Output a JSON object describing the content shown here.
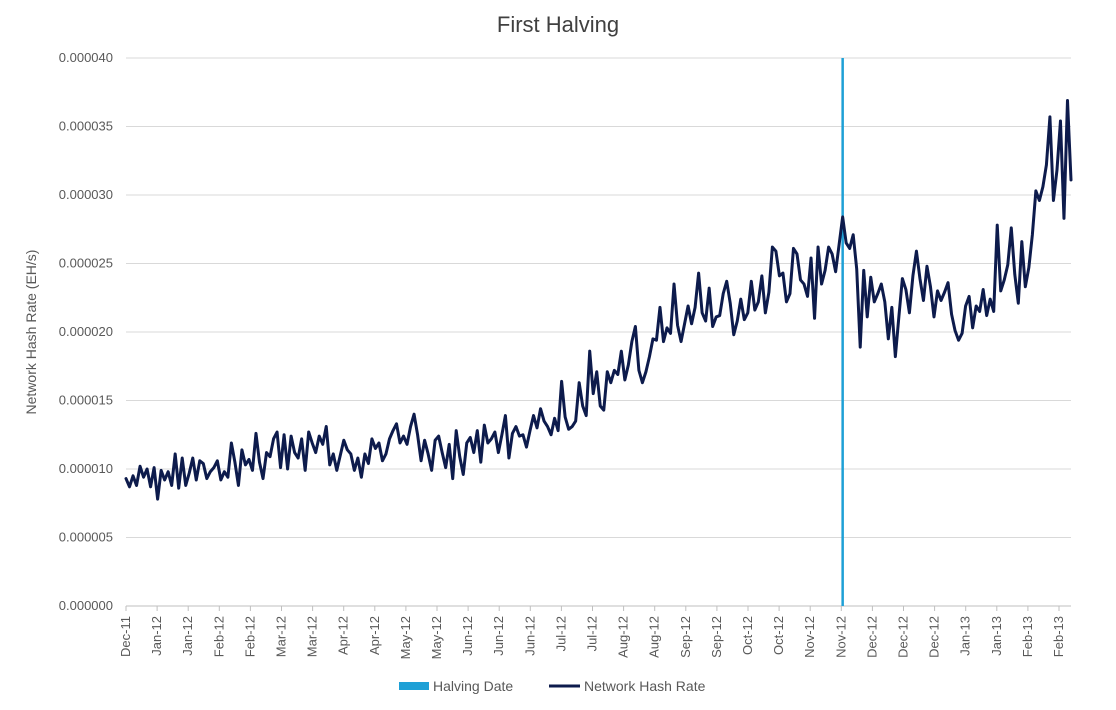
{
  "chart_data": {
    "type": "line",
    "title": "First Halving",
    "ylabel": "Network Hash Rate (EH/s)",
    "xlabel": "",
    "ylim": [
      0,
      4e-05
    ],
    "yticks": [
      "0.000000",
      "0.000005",
      "0.000010",
      "0.000015",
      "0.000020",
      "0.000025",
      "0.000030",
      "0.000035",
      "0.000040"
    ],
    "ytick_values": [
      0,
      5e-06,
      1e-05,
      1.5e-05,
      2e-05,
      2.5e-05,
      3e-05,
      3.5e-05,
      4e-05
    ],
    "x_tick_labels": [
      "Dec-11",
      "Jan-12",
      "Jan-12",
      "Feb-12",
      "Feb-12",
      "Mar-12",
      "Mar-12",
      "Apr-12",
      "Apr-12",
      "May-12",
      "May-12",
      "Jun-12",
      "Jun-12",
      "Jun-12",
      "Jul-12",
      "Jul-12",
      "Aug-12",
      "Aug-12",
      "Sep-12",
      "Sep-12",
      "Oct-12",
      "Oct-12",
      "Nov-12",
      "Nov-12",
      "Dec-12",
      "Dec-12",
      "Dec-12",
      "Jan-13",
      "Jan-13",
      "Feb-13",
      "Feb-13"
    ],
    "grid": true,
    "legend_position": "bottom",
    "series": [
      {
        "name": "Network Hash Rate",
        "color": "#0d1b4c",
        "values": [
          9.3e-06,
          8.7e-06,
          9.5e-06,
          8.8e-06,
          1.02e-05,
          9.4e-06,
          1e-05,
          8.7e-06,
          1.01e-05,
          7.8e-06,
          9.9e-06,
          9.2e-06,
          9.8e-06,
          8.8e-06,
          1.11e-05,
          8.6e-06,
          1.08e-05,
          8.8e-06,
          9.7e-06,
          1.08e-05,
          9.2e-06,
          1.06e-05,
          1.04e-05,
          9.3e-06,
          9.8e-06,
          1.01e-05,
          1.06e-05,
          9.2e-06,
          9.8e-06,
          9.4e-06,
          1.19e-05,
          1.05e-05,
          8.8e-06,
          1.14e-05,
          1.03e-05,
          1.07e-05,
          9.9e-06,
          1.26e-05,
          1.05e-05,
          9.3e-06,
          1.12e-05,
          1.09e-05,
          1.22e-05,
          1.27e-05,
          1.01e-05,
          1.25e-05,
          1e-05,
          1.24e-05,
          1.12e-05,
          1.08e-05,
          1.22e-05,
          9.9e-06,
          1.27e-05,
          1.19e-05,
          1.12e-05,
          1.24e-05,
          1.18e-05,
          1.31e-05,
          1.03e-05,
          1.11e-05,
          9.9e-06,
          1.1e-05,
          1.21e-05,
          1.14e-05,
          1.11e-05,
          9.9e-06,
          1.08e-05,
          9.4e-06,
          1.11e-05,
          1.04e-05,
          1.22e-05,
          1.15e-05,
          1.19e-05,
          1.06e-05,
          1.11e-05,
          1.22e-05,
          1.28e-05,
          1.33e-05,
          1.19e-05,
          1.24e-05,
          1.18e-05,
          1.31e-05,
          1.4e-05,
          1.25e-05,
          1.06e-05,
          1.21e-05,
          1.11e-05,
          9.9e-06,
          1.21e-05,
          1.24e-05,
          1.12e-05,
          1.01e-05,
          1.18e-05,
          9.3e-06,
          1.28e-05,
          1.09e-05,
          9.6e-06,
          1.19e-05,
          1.23e-05,
          1.12e-05,
          1.28e-05,
          1.05e-05,
          1.32e-05,
          1.19e-05,
          1.22e-05,
          1.27e-05,
          1.12e-05,
          1.25e-05,
          1.39e-05,
          1.08e-05,
          1.26e-05,
          1.31e-05,
          1.24e-05,
          1.25e-05,
          1.16e-05,
          1.28e-05,
          1.39e-05,
          1.3e-05,
          1.44e-05,
          1.35e-05,
          1.31e-05,
          1.25e-05,
          1.37e-05,
          1.28e-05,
          1.64e-05,
          1.38e-05,
          1.29e-05,
          1.31e-05,
          1.35e-05,
          1.63e-05,
          1.46e-05,
          1.39e-05,
          1.86e-05,
          1.55e-05,
          1.71e-05,
          1.46e-05,
          1.43e-05,
          1.71e-05,
          1.63e-05,
          1.72e-05,
          1.69e-05,
          1.86e-05,
          1.65e-05,
          1.76e-05,
          1.93e-05,
          2.04e-05,
          1.72e-05,
          1.63e-05,
          1.71e-05,
          1.82e-05,
          1.95e-05,
          1.94e-05,
          2.18e-05,
          1.93e-05,
          2.03e-05,
          1.99e-05,
          2.35e-05,
          2.05e-05,
          1.93e-05,
          2.06e-05,
          2.19e-05,
          2.06e-05,
          2.18e-05,
          2.43e-05,
          2.14e-05,
          2.08e-05,
          2.32e-05,
          2.04e-05,
          2.11e-05,
          2.12e-05,
          2.28e-05,
          2.37e-05,
          2.21e-05,
          1.98e-05,
          2.08e-05,
          2.24e-05,
          2.09e-05,
          2.14e-05,
          2.37e-05,
          2.16e-05,
          2.22e-05,
          2.41e-05,
          2.14e-05,
          2.29e-05,
          2.62e-05,
          2.59e-05,
          2.41e-05,
          2.43e-05,
          2.22e-05,
          2.28e-05,
          2.61e-05,
          2.57e-05,
          2.38e-05,
          2.35e-05,
          2.26e-05,
          2.54e-05,
          2.1e-05,
          2.62e-05,
          2.35e-05,
          2.45e-05,
          2.62e-05,
          2.57e-05,
          2.44e-05,
          2.64e-05,
          2.84e-05,
          2.65e-05,
          2.61e-05,
          2.71e-05,
          2.46e-05,
          1.89e-05,
          2.45e-05,
          2.11e-05,
          2.4e-05,
          2.22e-05,
          2.28e-05,
          2.35e-05,
          2.22e-05,
          1.95e-05,
          2.18e-05,
          1.82e-05,
          2.11e-05,
          2.39e-05,
          2.31e-05,
          2.14e-05,
          2.41e-05,
          2.59e-05,
          2.39e-05,
          2.23e-05,
          2.48e-05,
          2.33e-05,
          2.11e-05,
          2.3e-05,
          2.23e-05,
          2.29e-05,
          2.36e-05,
          2.13e-05,
          2.01e-05,
          1.94e-05,
          1.99e-05,
          2.19e-05,
          2.26e-05,
          2.03e-05,
          2.19e-05,
          2.15e-05,
          2.31e-05,
          2.12e-05,
          2.24e-05,
          2.15e-05,
          2.78e-05,
          2.3e-05,
          2.38e-05,
          2.49e-05,
          2.76e-05,
          2.42e-05,
          2.21e-05,
          2.66e-05,
          2.33e-05,
          2.47e-05,
          2.71e-05,
          3.03e-05,
          2.96e-05,
          3.06e-05,
          3.22e-05,
          3.57e-05,
          2.96e-05,
          3.18e-05,
          3.54e-05,
          2.83e-05,
          3.69e-05,
          3.11e-05
        ]
      }
    ],
    "reference_lines": [
      {
        "name": "Halving Date",
        "color": "#1ea0d6",
        "position_index": 204
      }
    ],
    "legend": [
      {
        "label": "Halving Date",
        "color": "#1ea0d6",
        "kind": "bar"
      },
      {
        "label": "Network Hash Rate",
        "color": "#0d1b4c",
        "kind": "line"
      }
    ]
  }
}
